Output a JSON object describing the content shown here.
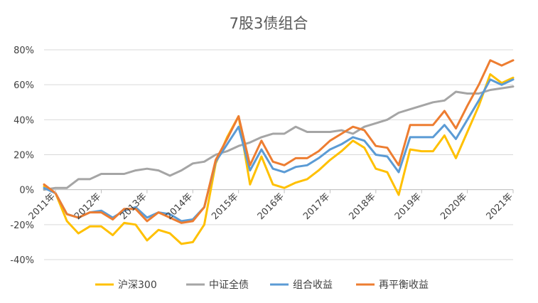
{
  "chart_data": {
    "type": "line",
    "title": "7股3债组合",
    "xlabel": "",
    "ylabel": "",
    "ylim": [
      -40,
      80
    ],
    "yticks": [
      "80%",
      "60%",
      "40%",
      "20%",
      "0%",
      "-20%",
      "-40%"
    ],
    "y_tick_values": [
      80,
      60,
      40,
      20,
      0,
      -20,
      -40
    ],
    "x_tick_labels": [
      "2011年",
      "2012年",
      "2013年",
      "2014年",
      "2015年",
      "2016年",
      "2017年",
      "2018年",
      "2019年",
      "2020年",
      "2021年"
    ],
    "grid": true,
    "legend_position": "bottom",
    "series": [
      {
        "name": "沪深300",
        "color": "#FFC000",
        "values": [
          2,
          -2,
          -18,
          -25,
          -21,
          -21,
          -26,
          -19,
          -20,
          -29,
          -23,
          -25,
          -31,
          -30,
          -20,
          15,
          30,
          42,
          3,
          19,
          3,
          1,
          4,
          6,
          11,
          17,
          22,
          28,
          24,
          12,
          10,
          -3,
          23,
          22,
          22,
          31,
          18,
          33,
          48,
          66,
          61,
          64
        ]
      },
      {
        "name": "中证全债",
        "color": "#A5A5A5",
        "values": [
          0,
          1,
          1,
          6,
          6,
          9,
          9,
          9,
          11,
          12,
          11,
          8,
          11,
          15,
          16,
          20,
          22,
          25,
          27,
          30,
          32,
          32,
          36,
          33,
          33,
          33,
          34,
          32,
          36,
          38,
          40,
          44,
          46,
          48,
          50,
          51,
          56,
          55,
          55,
          57,
          58,
          59
        ]
      },
      {
        "name": "组合收益",
        "color": "#5B9BD5",
        "values": [
          1,
          -2,
          -14,
          -16,
          -13,
          -12,
          -16,
          -12,
          -10,
          -16,
          -13,
          -14,
          -18,
          -17,
          -10,
          16,
          26,
          36,
          11,
          23,
          12,
          10,
          13,
          14,
          18,
          23,
          26,
          30,
          28,
          20,
          19,
          10,
          30,
          30,
          30,
          37,
          29,
          40,
          51,
          63,
          60,
          63
        ]
      },
      {
        "name": "再平衡收益",
        "color": "#ED7D31",
        "values": [
          3,
          -2,
          -14,
          -16,
          -13,
          -13,
          -17,
          -11,
          -11,
          -18,
          -13,
          -16,
          -19,
          -18,
          -10,
          17,
          29,
          42,
          14,
          28,
          16,
          14,
          18,
          18,
          22,
          28,
          32,
          36,
          34,
          25,
          24,
          14,
          37,
          37,
          37,
          45,
          35,
          48,
          60,
          74,
          71,
          74
        ]
      }
    ]
  }
}
